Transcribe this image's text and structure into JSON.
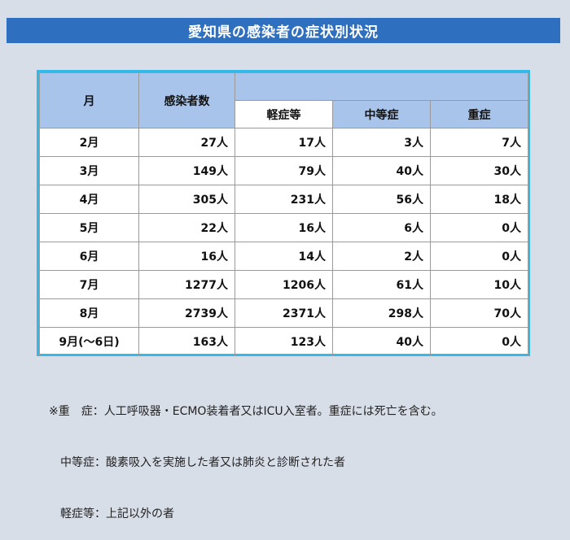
{
  "title": "愛知県の感染者の症状別状況",
  "table": {
    "headers": {
      "month": "月",
      "infected": "感染者数",
      "mild": "軽症等",
      "moderate": "中等症",
      "severe": "重症"
    },
    "rows": [
      {
        "month": "2月",
        "infected": "27人",
        "mild": "17人",
        "moderate": "3人",
        "severe": "7人"
      },
      {
        "month": "3月",
        "infected": "149人",
        "mild": "79人",
        "moderate": "40人",
        "severe": "30人"
      },
      {
        "month": "4月",
        "infected": "305人",
        "mild": "231人",
        "moderate": "56人",
        "severe": "18人"
      },
      {
        "month": "5月",
        "infected": "22人",
        "mild": "16人",
        "moderate": "6人",
        "severe": "0人"
      },
      {
        "month": "6月",
        "infected": "16人",
        "mild": "14人",
        "moderate": "2人",
        "severe": "0人"
      },
      {
        "month": "7月",
        "infected": "1277人",
        "mild": "1206人",
        "moderate": "61人",
        "severe": "10人"
      },
      {
        "month": "8月",
        "infected": "2739人",
        "mild": "2371人",
        "moderate": "298人",
        "severe": "70人"
      },
      {
        "month": "9月(～6日)",
        "infected": "163人",
        "mild": "123人",
        "moderate": "40人",
        "severe": "0人"
      }
    ]
  },
  "notes": [
    "※重　症：人工呼吸器・ECMO装着者又はICU入室者。重症には死亡を含む。",
    "　中等症：酸素吸入を実施した者又は肺炎と診断された者",
    "　軽症等：上記以外の者"
  ]
}
